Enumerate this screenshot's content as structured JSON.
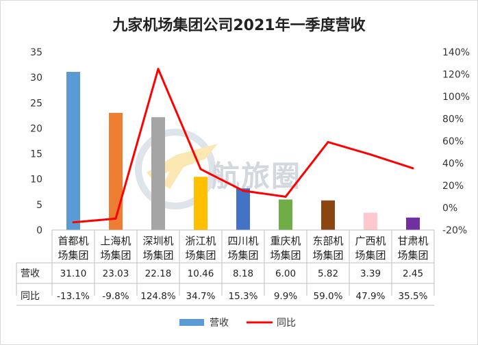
{
  "chart_data": {
    "type": "bar+line",
    "title": "九家机场集团公司2021年一季度营收",
    "categories": [
      [
        "首都机",
        "场集团"
      ],
      [
        "上海机",
        "场集团"
      ],
      [
        "深圳机",
        "场集团"
      ],
      [
        "浙江机",
        "场集团"
      ],
      [
        "四川机",
        "场集团"
      ],
      [
        "重庆机",
        "场集团"
      ],
      [
        "东部机",
        "场集团"
      ],
      [
        "广西机",
        "场集团"
      ],
      [
        "甘肃机",
        "场集团"
      ]
    ],
    "series": [
      {
        "name": "营收",
        "type": "bar",
        "axis": "left",
        "values": [
          31.1,
          23.03,
          22.18,
          10.46,
          8.18,
          6.0,
          5.82,
          3.39,
          2.45
        ],
        "labels": [
          "31.10",
          "23.03",
          "22.18",
          "10.46",
          "8.18",
          "6.00",
          "5.82",
          "3.39",
          "2.45"
        ],
        "colors": [
          "#5b9bd5",
          "#ed7d31",
          "#a5a5a5",
          "#ffc000",
          "#4472c4",
          "#70ad47",
          "#8b4513",
          "#ffc7ce",
          "#7030a0"
        ]
      },
      {
        "name": "同比",
        "type": "line",
        "axis": "right",
        "values": [
          -13.1,
          -9.8,
          124.8,
          34.7,
          15.3,
          9.9,
          59.0,
          47.9,
          35.5
        ],
        "labels": [
          "-13.1%",
          "-9.8%",
          "124.8%",
          "34.7%",
          "15.3%",
          "9.9%",
          "59.0%",
          "47.9%",
          "35.5%"
        ],
        "color": "#ff0000"
      }
    ],
    "y_left": {
      "min": 0,
      "max": 35,
      "ticks": [
        "0",
        "5",
        "10",
        "15",
        "20",
        "25",
        "30",
        "35"
      ]
    },
    "y_right": {
      "min": -20,
      "max": 140,
      "ticks": [
        "-20%",
        "0%",
        "20%",
        "40%",
        "60%",
        "80%",
        "100%",
        "120%",
        "140%"
      ]
    },
    "grid": false,
    "legend": "bottom",
    "data_table": true
  },
  "watermark": {
    "text": "航旅圈"
  }
}
